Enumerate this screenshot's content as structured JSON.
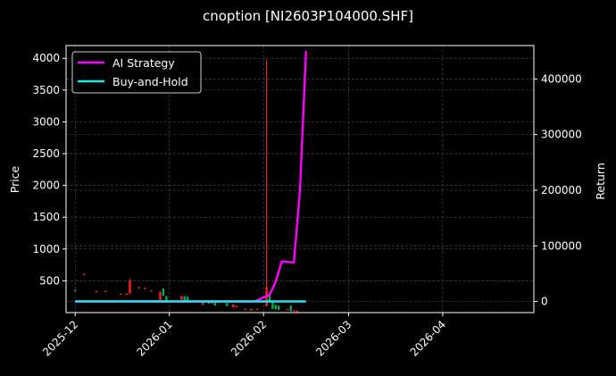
{
  "chart_data": {
    "type": "line",
    "title": "cnoption [NI2603P104000.SHF]",
    "xlabel": "",
    "ylabel": "Price",
    "ylabel_right": "Return",
    "x_ticks": [
      "2025-12",
      "2026-01",
      "2026-02",
      "2026-03",
      "2026-04"
    ],
    "y_ticks_left": [
      500,
      1000,
      1500,
      2000,
      2500,
      3000,
      3500,
      4000
    ],
    "y_ticks_right": [
      0,
      100000,
      200000,
      300000,
      400000
    ],
    "ylim_left": [
      0,
      4200
    ],
    "ylim_right": [
      -20000,
      460000
    ],
    "xlim": [
      "2025-11-28",
      "2026-05-01"
    ],
    "grid": true,
    "legend_position": "upper left",
    "legend": [
      "AI Strategy",
      "Buy-and-Hold"
    ],
    "colors": {
      "background": "#000000",
      "ai_strategy": "#ff00ff",
      "buy_and_hold": "#22e4ef",
      "candle_up": "#ff2020",
      "candle_down": "#00b050",
      "grid": "#444444",
      "axes": "#ffffff"
    },
    "series": [
      {
        "name": "AI Strategy",
        "axis": "right",
        "x": [
          "2025-12-01",
          "2026-01-29",
          "2026-02-03",
          "2026-02-05",
          "2026-02-07",
          "2026-02-11",
          "2026-02-13",
          "2026-02-15"
        ],
        "values": [
          0,
          0,
          12000,
          35000,
          72000,
          70000,
          200000,
          450000
        ]
      },
      {
        "name": "Buy-and-Hold",
        "axis": "right",
        "x": [
          "2025-12-01",
          "2026-02-15"
        ],
        "values": [
          0,
          0
        ]
      }
    ],
    "candlesticks": {
      "axis": "left",
      "note": "Approximate daily OHLC bars read from pixels",
      "bars": [
        {
          "date": "2025-12-01",
          "open": 340,
          "close": 360,
          "dir": "down"
        },
        {
          "date": "2025-12-04",
          "open": 600,
          "close": 610,
          "dir": "up"
        },
        {
          "date": "2025-12-08",
          "open": 330,
          "close": 340,
          "dir": "up"
        },
        {
          "date": "2025-12-11",
          "open": 330,
          "close": 345,
          "dir": "up"
        },
        {
          "date": "2025-12-16",
          "open": 280,
          "close": 300,
          "dir": "up"
        },
        {
          "date": "2025-12-18",
          "open": 290,
          "close": 300,
          "dir": "up"
        },
        {
          "date": "2025-12-19",
          "open": 300,
          "close": 500,
          "dir": "up",
          "high": 530
        },
        {
          "date": "2025-12-22",
          "open": 390,
          "close": 400,
          "dir": "up"
        },
        {
          "date": "2025-12-24",
          "open": 380,
          "close": 390,
          "dir": "up"
        },
        {
          "date": "2025-12-26",
          "open": 340,
          "close": 350,
          "dir": "up"
        },
        {
          "date": "2025-12-29",
          "open": 180,
          "close": 330,
          "dir": "up"
        },
        {
          "date": "2025-12-30",
          "open": 260,
          "close": 380,
          "dir": "down"
        },
        {
          "date": "2025-12-31",
          "open": 180,
          "close": 260,
          "dir": "down"
        },
        {
          "date": "2026-01-05",
          "open": 200,
          "close": 260,
          "dir": "up"
        },
        {
          "date": "2026-01-06",
          "open": 190,
          "close": 260,
          "dir": "down"
        },
        {
          "date": "2026-01-07",
          "open": 160,
          "close": 250,
          "dir": "down"
        },
        {
          "date": "2026-01-12",
          "open": 120,
          "close": 160,
          "dir": "up"
        },
        {
          "date": "2026-01-14",
          "open": 140,
          "close": 190,
          "dir": "down"
        },
        {
          "date": "2026-01-15",
          "open": 140,
          "close": 170,
          "dir": "up"
        },
        {
          "date": "2026-01-16",
          "open": 110,
          "close": 170,
          "dir": "down"
        },
        {
          "date": "2026-01-20",
          "open": 100,
          "close": 150,
          "dir": "down"
        },
        {
          "date": "2026-01-22",
          "open": 80,
          "close": 130,
          "dir": "up"
        },
        {
          "date": "2026-01-23",
          "open": 80,
          "close": 110,
          "dir": "up"
        },
        {
          "date": "2026-01-26",
          "open": 40,
          "close": 60,
          "dir": "up"
        },
        {
          "date": "2026-01-28",
          "open": 30,
          "close": 60,
          "dir": "up"
        },
        {
          "date": "2026-01-30",
          "open": 40,
          "close": 60,
          "dir": "up"
        },
        {
          "date": "2026-02-02",
          "open": 100,
          "close": 400,
          "dir": "up",
          "high": 3980
        },
        {
          "date": "2026-02-03",
          "open": 180,
          "close": 300,
          "dir": "down"
        },
        {
          "date": "2026-02-04",
          "open": 60,
          "close": 180,
          "dir": "down"
        },
        {
          "date": "2026-02-05",
          "open": 50,
          "close": 120,
          "dir": "down"
        },
        {
          "date": "2026-02-06",
          "open": 40,
          "close": 110,
          "dir": "down"
        },
        {
          "date": "2026-02-09",
          "open": 40,
          "close": 60,
          "dir": "up"
        },
        {
          "date": "2026-02-10",
          "open": 20,
          "close": 110,
          "dir": "down"
        },
        {
          "date": "2026-02-11",
          "open": 20,
          "close": 40,
          "dir": "up"
        },
        {
          "date": "2026-02-12",
          "open": 20,
          "close": 30,
          "dir": "up"
        }
      ]
    }
  }
}
